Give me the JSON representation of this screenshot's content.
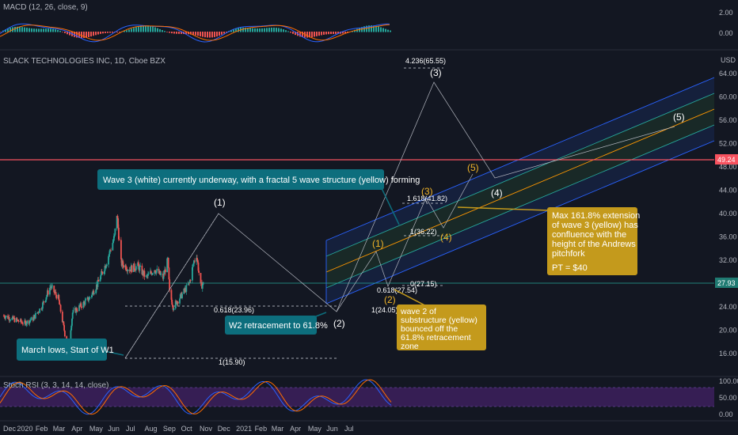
{
  "macd": {
    "title": "MACD (12, 26, close, 9)",
    "ticks": [
      "2.00",
      "0.00"
    ]
  },
  "main": {
    "title": "SLACK TECHNOLOGIES INC, 1D, Cboe BZX",
    "currency": "USD",
    "price_ticks": [
      "64.00",
      "60.00",
      "56.00",
      "52.00",
      "48.00",
      "44.00",
      "40.00",
      "36.00",
      "32.00",
      "28.00",
      "24.00",
      "20.00",
      "16.00"
    ],
    "resistance_value": "49.24",
    "last_price": "27.93",
    "fib_labels": {
      "top": "4.236(65.55)",
      "ext": "1.618(41.82)",
      "one": "1(36.22)",
      "zero": "0(27.15)",
      "retr_y": "0.618(27.54)",
      "retr_w": "0.618(23.96)",
      "base_y": "1(24.05)",
      "base_w": "1(15.90)"
    },
    "white_waves": {
      "w1": "(1)",
      "w2": "(2)",
      "w3": "(3)",
      "w4": "(4)",
      "w5": "(5)"
    },
    "yellow_waves": {
      "y1": "(1)",
      "y2": "(2)",
      "y3": "(3)",
      "y4": "(4)",
      "y5": "(5)"
    },
    "annotations": {
      "wave3": "Wave 3 (white) currently underway, with a fractal 5 wave structure (yellow) forming",
      "w2retr": "W2 retracement to 61.8%",
      "march": "March lows, Start of W1",
      "substructure": "wave 2 of substructure (yellow) bounced off the 61.8% retracement zone",
      "max_line1": "Max 161.8% extension",
      "max_line2": "of wave 3 (yellow) has",
      "max_line3": "confluence with the",
      "max_line4": "height of the Andrews",
      "max_line5": "pitchfork",
      "pt": "PT = $40"
    }
  },
  "stoch": {
    "title": "Stoch RSI (3, 3, 14, 14, close)",
    "ticks": [
      "100.00",
      "50.00",
      "0.00"
    ]
  },
  "time_axis": [
    "Dec",
    "2020",
    "Feb",
    "Mar",
    "Apr",
    "May",
    "Jun",
    "Jul",
    "Aug",
    "Sep",
    "Oct",
    "Nov",
    "Dec",
    "2021",
    "Feb",
    "Mar",
    "Apr",
    "May",
    "Jun",
    "Jul"
  ],
  "colors": {
    "bg": "#131722",
    "up": "#26a69a",
    "down": "#ef5350",
    "resistance": "#f7525f",
    "note_teal": "#0d6e7d",
    "note_gold": "#c49a1c"
  },
  "chart_data": {
    "type": "candlestick",
    "title": "SLACK TECHNOLOGIES INC, 1D, Cboe BZX",
    "ylabel": "USD",
    "ylim": [
      12,
      68
    ],
    "x_range": [
      "2019-12-01",
      "2021-07-20"
    ],
    "series": [
      {
        "name": "price (approx close)",
        "points": [
          [
            "2019-12-02",
            22.5
          ],
          [
            "2019-12-20",
            21.8
          ],
          [
            "2020-01-06",
            21.2
          ],
          [
            "2020-01-20",
            22.0
          ],
          [
            "2020-02-03",
            24.0
          ],
          [
            "2020-02-18",
            27.5
          ],
          [
            "2020-03-02",
            25.5
          ],
          [
            "2020-03-12",
            20.0
          ],
          [
            "2020-03-18",
            15.9
          ],
          [
            "2020-03-26",
            23.0
          ],
          [
            "2020-04-09",
            24.2
          ],
          [
            "2020-04-23",
            25.5
          ],
          [
            "2020-05-07",
            28.0
          ],
          [
            "2020-05-21",
            31.5
          ],
          [
            "2020-06-04",
            36.0
          ],
          [
            "2020-06-08",
            40.0
          ],
          [
            "2020-06-15",
            31.5
          ],
          [
            "2020-06-29",
            30.5
          ],
          [
            "2020-07-13",
            31.0
          ],
          [
            "2020-07-27",
            29.0
          ],
          [
            "2020-08-10",
            30.5
          ],
          [
            "2020-08-24",
            29.0
          ],
          [
            "2020-09-01",
            32.0
          ],
          [
            "2020-09-04",
            26.5
          ],
          [
            "2020-09-10",
            24.0
          ],
          [
            "2020-09-24",
            26.0
          ],
          [
            "2020-10-07",
            28.0
          ],
          [
            "2020-10-14",
            31.5
          ],
          [
            "2020-10-19",
            33.0
          ],
          [
            "2020-10-26",
            27.5
          ],
          [
            "2020-10-30",
            27.93
          ]
        ]
      }
    ],
    "levels": {
      "resistance": 49.24,
      "last": 27.93
    },
    "fibonacci": [
      {
        "label": "4.236",
        "value": 65.55
      },
      {
        "label": "1.618",
        "value": 41.82
      },
      {
        "label": "1",
        "value": 36.22
      },
      {
        "label": "0",
        "value": 27.15
      },
      {
        "label": "0.618",
        "value": 27.54
      },
      {
        "label": "0.618",
        "value": 23.96
      },
      {
        "label": "1",
        "value": 24.05
      },
      {
        "label": "1",
        "value": 15.9
      }
    ]
  }
}
